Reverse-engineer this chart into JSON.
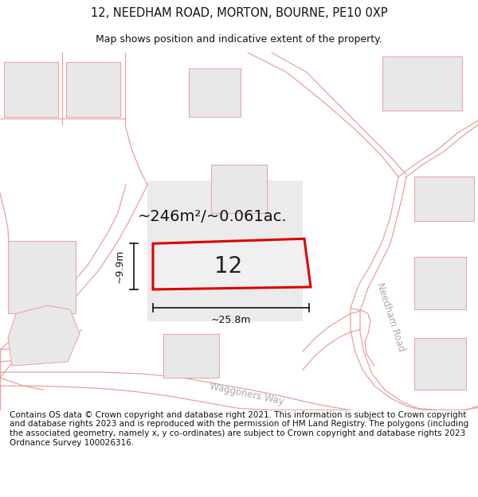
{
  "title_line1": "12, NEEDHAM ROAD, MORTON, BOURNE, PE10 0XP",
  "title_line2": "Map shows position and indicative extent of the property.",
  "footer_text": "Contains OS data © Crown copyright and database right 2021. This information is subject to Crown copyright and database rights 2023 and is reproduced with the permission of HM Land Registry. The polygons (including the associated geometry, namely x, y co-ordinates) are subject to Crown copyright and database rights 2023 Ordnance Survey 100026316.",
  "area_label": "~246m²/~0.061ac.",
  "property_number": "12",
  "dim_width": "~25.8m",
  "dim_height": "~9.9m",
  "road_label1": "Needham Road",
  "road_label2": "Waggoners Way",
  "map_bg": "#ffffff",
  "block_fill": "#e8e8e8",
  "block_edge": "#e8a8a8",
  "road_line": "#e8a0a0",
  "road_fill": "#f5f5f5",
  "property_fill": "#f0f0f0",
  "property_stroke": "#dd0000",
  "dim_color": "#111111",
  "label_color": "#aaaaaa",
  "title_fontsize": 10.5,
  "subtitle_fontsize": 9.0,
  "footer_fontsize": 7.5,
  "area_fontsize": 14,
  "num_fontsize": 20,
  "dim_fontsize": 9,
  "road_fontsize": 8.5
}
